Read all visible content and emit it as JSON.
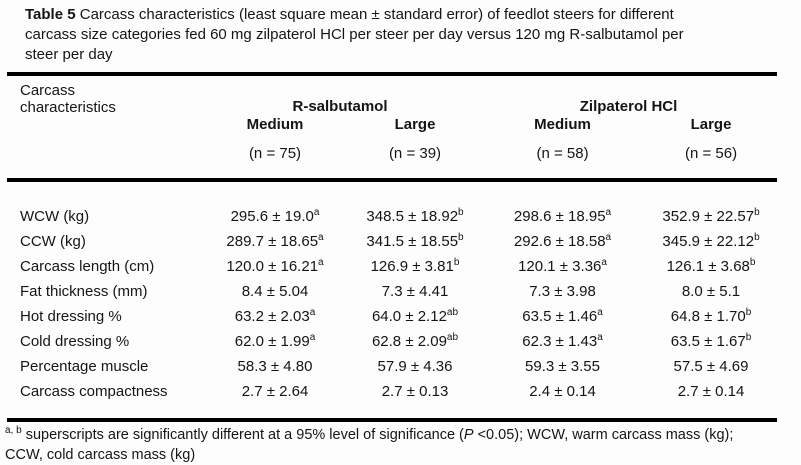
{
  "caption": {
    "label": "Table 5",
    "line1": "Carcass characteristics (least square mean ± standard error) of feedlot steers for different",
    "line2": "carcass size categories fed 60 mg zilpaterol HCl per steer per day versus 120 mg R-salbutamol per",
    "line3": "steer per day"
  },
  "table": {
    "stub_header": "Carcass characteristics",
    "groups": [
      {
        "label": "R-salbutamol",
        "columns": [
          {
            "size": "Medium",
            "n": "(n = 75)"
          },
          {
            "size": "Large",
            "n": "(n = 39)"
          }
        ]
      },
      {
        "label": "Zilpaterol HCl",
        "columns": [
          {
            "size": "Medium",
            "n": "(n = 58)"
          },
          {
            "size": "Large",
            "n": "(n = 56)"
          }
        ]
      }
    ],
    "rows": [
      {
        "label": "WCW (kg)",
        "values": [
          {
            "v": "295.6 ± 19.0",
            "sup": "a"
          },
          {
            "v": "348.5 ± 18.92",
            "sup": "b"
          },
          {
            "v": "298.6 ± 18.95",
            "sup": "a"
          },
          {
            "v": "352.9 ± 22.57",
            "sup": "b"
          }
        ]
      },
      {
        "label": "CCW (kg)",
        "values": [
          {
            "v": "289.7 ± 18.65",
            "sup": "a"
          },
          {
            "v": "341.5 ± 18.55",
            "sup": "b"
          },
          {
            "v": "292.6 ± 18.58",
            "sup": "a"
          },
          {
            "v": "345.9 ± 22.12",
            "sup": "b"
          }
        ]
      },
      {
        "label": "Carcass length (cm)",
        "values": [
          {
            "v": "120.0 ± 16.21",
            "sup": "a"
          },
          {
            "v": "126.9 ± 3.81",
            "sup": "b"
          },
          {
            "v": "120.1 ± 3.36",
            "sup": "a"
          },
          {
            "v": "126.1 ± 3.68",
            "sup": "b"
          }
        ]
      },
      {
        "label": "Fat thickness (mm)",
        "values": [
          {
            "v": "8.4 ± 5.04",
            "sup": ""
          },
          {
            "v": "7.3 ± 4.41",
            "sup": ""
          },
          {
            "v": "7.3 ± 3.98",
            "sup": ""
          },
          {
            "v": "8.0 ± 5.1",
            "sup": ""
          }
        ]
      },
      {
        "label": "Hot dressing %",
        "values": [
          {
            "v": "63.2 ± 2.03",
            "sup": "a"
          },
          {
            "v": "64.0 ± 2.12",
            "sup": "ab"
          },
          {
            "v": "63.5 ± 1.46",
            "sup": "a"
          },
          {
            "v": "64.8 ± 1.70",
            "sup": "b"
          }
        ]
      },
      {
        "label": "Cold dressing %",
        "values": [
          {
            "v": "62.0 ± 1.99",
            "sup": "a"
          },
          {
            "v": "62.8 ± 2.09",
            "sup": "ab"
          },
          {
            "v": "62.3 ± 1.43",
            "sup": "a"
          },
          {
            "v": "63.5 ± 1.67",
            "sup": "b"
          }
        ]
      },
      {
        "label": "Percentage muscle",
        "values": [
          {
            "v": "58.3 ± 4.80",
            "sup": ""
          },
          {
            "v": "57.9 ± 4.36",
            "sup": ""
          },
          {
            "v": "59.3 ± 3.55",
            "sup": ""
          },
          {
            "v": "57.5 ± 4.69",
            "sup": ""
          }
        ]
      },
      {
        "label": "Carcass compactness",
        "values": [
          {
            "v": "2.7 ± 2.64",
            "sup": ""
          },
          {
            "v": "2.7 ± 0.13",
            "sup": ""
          },
          {
            "v": "2.4 ± 0.14",
            "sup": ""
          },
          {
            "v": "2.7 ± 0.14",
            "sup": ""
          }
        ]
      }
    ]
  },
  "footnote": {
    "sup": "a, b",
    "line1_pre": "superscripts are significantly different at a 95% level of significance (",
    "line1_italic": "P",
    "line1_post": " <0.05); WCW, warm carcass mass (kg);",
    "line2": "CCW, cold carcass mass (kg)"
  }
}
